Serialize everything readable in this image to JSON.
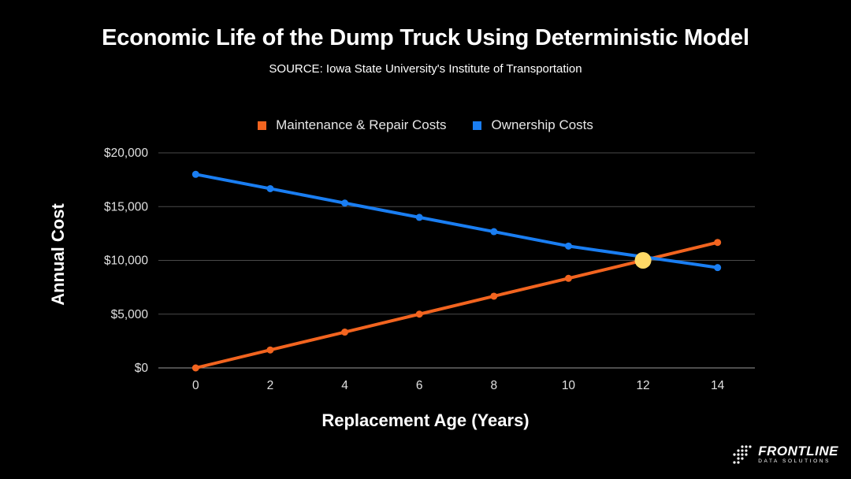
{
  "chart_data": {
    "type": "line",
    "title": "Economic Life of the Dump Truck Using Deterministic Model",
    "subtitle": "SOURCE: Iowa State University's Institute of Transportation",
    "xlabel": "Replacement Age (Years)",
    "ylabel": "Annual Cost",
    "x": [
      0,
      2,
      4,
      6,
      8,
      10,
      12,
      14
    ],
    "x_tick_labels": [
      "0",
      "2",
      "4",
      "6",
      "8",
      "10",
      "12",
      "14"
    ],
    "xlim": [
      -1,
      15
    ],
    "ylim": [
      0,
      20000
    ],
    "y_ticks": [
      0,
      5000,
      10000,
      15000,
      20000
    ],
    "y_tick_labels": [
      "$0",
      "$5,000",
      "$10,000",
      "$15,000",
      "$20,000"
    ],
    "grid": "horizontal",
    "legend_position": "top",
    "series": [
      {
        "name": "Maintenance & Repair Costs",
        "color": "#f2641f",
        "x": [
          0,
          2,
          4,
          6,
          8,
          10,
          14
        ],
        "values": [
          0,
          1670,
          3330,
          5000,
          6670,
          8330,
          11670
        ]
      },
      {
        "name": "Ownership Costs",
        "color": "#1a7ef2",
        "x": [
          0,
          2,
          4,
          6,
          8,
          10,
          14
        ],
        "values": [
          18000,
          16670,
          15330,
          14000,
          12670,
          11330,
          9330
        ]
      }
    ],
    "highlight_point": {
      "x": 12,
      "y": 10000,
      "color": "#ffd966"
    }
  },
  "logo": {
    "name": "FRONTLINE",
    "tagline": "DATA SOLUTIONS"
  },
  "colors": {
    "background": "#000000",
    "gridline": "#4a4a4a"
  }
}
